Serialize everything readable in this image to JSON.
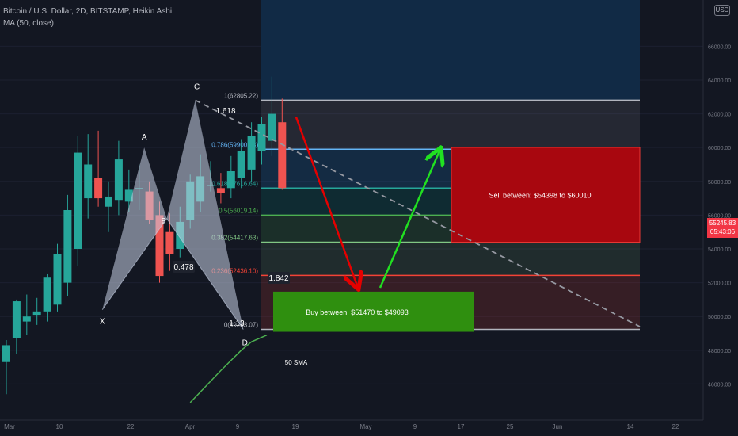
{
  "header": {
    "title": "Bitcoin / U.S. Dollar, 2D, BITSTAMP, Heikin Ashi",
    "indicator": "MA (50, close)",
    "currency": "USD"
  },
  "last_price": {
    "value": "55245.83",
    "countdown": "05:43:06"
  },
  "chart_data": {
    "type": "candlestick",
    "title": "",
    "xlabel": "",
    "ylabel": "",
    "x_ticks": [
      "Mar",
      "10",
      "22",
      "Apr",
      "9",
      "19",
      "May",
      "9",
      "17",
      "25",
      "Jun",
      "14",
      "22"
    ],
    "y_ticks": [
      46000,
      48000,
      50000,
      52000,
      54000,
      56000,
      58000,
      60000,
      62000,
      64000,
      66000
    ],
    "ylim": [
      44800,
      67800
    ],
    "colors": {
      "up": "#26a69a",
      "down": "#ef5350",
      "sma": "#4caf50"
    },
    "candles": [
      {
        "o": 47300,
        "h": 48600,
        "l": 45400,
        "c": 48300
      },
      {
        "o": 48700,
        "h": 51000,
        "l": 47800,
        "c": 50900
      },
      {
        "o": 49700,
        "h": 51300,
        "l": 48900,
        "c": 50000
      },
      {
        "o": 50100,
        "h": 51100,
        "l": 49500,
        "c": 50300
      },
      {
        "o": 50300,
        "h": 52500,
        "l": 49700,
        "c": 52300
      },
      {
        "o": 50700,
        "h": 54300,
        "l": 50300,
        "c": 53700
      },
      {
        "o": 52000,
        "h": 57200,
        "l": 51200,
        "c": 56300
      },
      {
        "o": 54000,
        "h": 60700,
        "l": 53000,
        "c": 59700
      },
      {
        "o": 57000,
        "h": 60800,
        "l": 55800,
        "c": 59000
      },
      {
        "o": 58200,
        "h": 61000,
        "l": 56500,
        "c": 57000
      },
      {
        "o": 56500,
        "h": 58000,
        "l": 55000,
        "c": 57100
      },
      {
        "o": 56900,
        "h": 60400,
        "l": 56000,
        "c": 59300
      },
      {
        "o": 56800,
        "h": 58700,
        "l": 56200,
        "c": 57500
      },
      {
        "o": 57600,
        "h": 59000,
        "l": 56300,
        "c": 57600
      },
      {
        "o": 57400,
        "h": 58000,
        "l": 55500,
        "c": 55700
      },
      {
        "o": 56000,
        "h": 56800,
        "l": 52000,
        "c": 52400
      },
      {
        "o": 55000,
        "h": 56100,
        "l": 52700,
        "c": 53700
      },
      {
        "o": 54000,
        "h": 56500,
        "l": 53500,
        "c": 55600
      },
      {
        "o": 55700,
        "h": 58400,
        "l": 55200,
        "c": 58000
      },
      {
        "o": 56800,
        "h": 59600,
        "l": 56200,
        "c": 58300
      },
      {
        "o": 57800,
        "h": 59200,
        "l": 57400,
        "c": 57800
      },
      {
        "o": 57600,
        "h": 58500,
        "l": 56700,
        "c": 57300
      },
      {
        "o": 57600,
        "h": 59500,
        "l": 57000,
        "c": 58600
      },
      {
        "o": 58200,
        "h": 60500,
        "l": 57600,
        "c": 59800
      },
      {
        "o": 58700,
        "h": 61500,
        "l": 58000,
        "c": 60700
      },
      {
        "o": 59800,
        "h": 61800,
        "l": 59000,
        "c": 61400
      },
      {
        "o": 60400,
        "h": 64200,
        "l": 59500,
        "c": 62000
      },
      {
        "o": 61500,
        "h": 62900,
        "l": 57500,
        "c": 57600
      }
    ],
    "sma": [
      [
        18,
        44900
      ],
      [
        21,
        46800
      ],
      [
        23,
        48000
      ],
      [
        24,
        48500
      ],
      [
        25.5,
        48900
      ]
    ],
    "pattern": {
      "X": {
        "i": 9.4,
        "p": 50400
      },
      "A": {
        "i": 13.5,
        "p": 60000
      },
      "B": {
        "i": 15.7,
        "p": 55800
      },
      "C": {
        "i": 18.5,
        "p": 62805
      },
      "D": {
        "i": 23.2,
        "p": 49233
      }
    },
    "labels": {
      "X": "X",
      "A": "A",
      "B": "B",
      "C": "C",
      "D": "D",
      "xab": "0.478",
      "abc": "1.618",
      "bcd": "1.842",
      "xad": "1.13",
      "sma": "50 SMA"
    },
    "fib": [
      {
        "level": "1",
        "price": 62805,
        "text": "1(62805.22)",
        "color": "#b2b5be"
      },
      {
        "level": "0.786",
        "price": 59900,
        "text": "0.786(59900.78)",
        "color": "#64b5f6"
      },
      {
        "level": "0.618",
        "price": 57600,
        "text": "0.618(57616.64)",
        "color": "#26a69a"
      },
      {
        "level": "0.5",
        "price": 56000,
        "text": "0.5(56019.14)",
        "color": "#4caf50"
      },
      {
        "level": "0.382",
        "price": 54400,
        "text": "0.382(54417.63)",
        "color": "#81c784"
      },
      {
        "level": "0.236",
        "price": 52436,
        "text": "0.236(52436.10)",
        "color": "#f44336"
      },
      {
        "level": "0",
        "price": 49233,
        "text": "0(49233.07)",
        "color": "#b2b5be"
      }
    ],
    "zones": {
      "sell": {
        "label": "Sell between: $54398 to $60010",
        "from": 54398,
        "to": 60010
      },
      "buy": {
        "label": "Buy between: $51470 to $49093",
        "from": 49093,
        "to": 51470
      }
    }
  }
}
